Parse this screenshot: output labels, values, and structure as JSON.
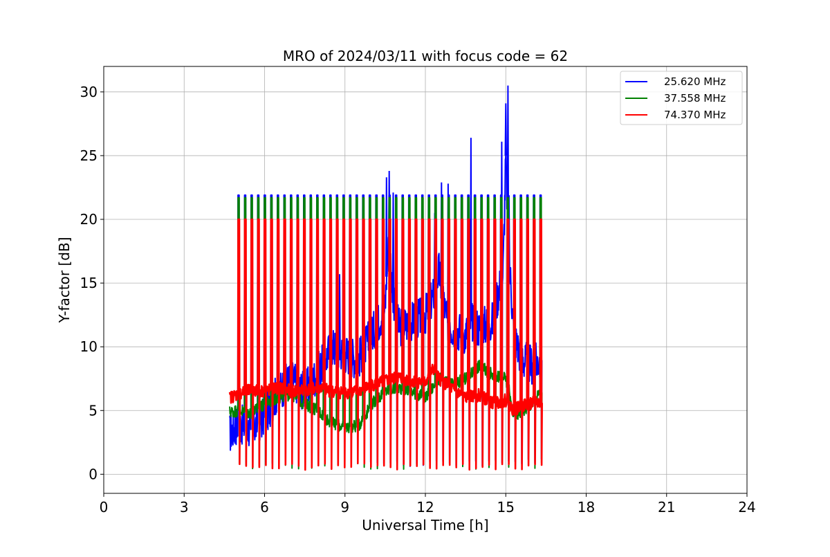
{
  "chart_data": {
    "type": "line",
    "title": "MRO of 2024/03/11 with focus code = 62",
    "xlabel": "Universal Time [h]",
    "ylabel": "Y-factor [dB]",
    "xlim": [
      0,
      24
    ],
    "ylim": [
      -1.5,
      32
    ],
    "xticks": [
      0,
      3,
      6,
      9,
      12,
      15,
      18,
      21,
      24
    ],
    "yticks": [
      0,
      5,
      10,
      15,
      20,
      25,
      30
    ],
    "grid": true,
    "legend_position": "top-right",
    "calibration_pulses": {
      "start_h": 5.0,
      "end_h": 16.3,
      "period_h": 0.245
    },
    "series": [
      {
        "name": "25.620 MHz",
        "color": "#0000ff",
        "pulse_peak": 21.9,
        "pulse_floor": 0.6,
        "baseline": {
          "x": [
            4.7,
            5.0,
            5.5,
            6.0,
            6.5,
            7.0,
            7.5,
            8.0,
            8.5,
            9.0,
            9.5,
            10.0,
            10.5,
            10.6,
            10.8,
            11.0,
            11.5,
            12.0,
            12.3,
            12.5,
            12.8,
            13.0,
            13.5,
            13.7,
            14.0,
            14.5,
            14.9,
            15.0,
            15.1,
            15.3,
            15.6,
            16.0,
            16.3
          ],
          "y": [
            3.2,
            4.0,
            3.5,
            4.5,
            6.5,
            7.5,
            6.5,
            8.0,
            10.0,
            9.5,
            9.0,
            11.0,
            13.0,
            18.0,
            14.0,
            11.5,
            12.0,
            12.5,
            14.0,
            16.0,
            12.0,
            11.5,
            11.0,
            12.0,
            11.5,
            12.0,
            16.0,
            25.0,
            18.0,
            11.0,
            9.0,
            8.5,
            9.0
          ]
        },
        "spikes": [
          {
            "x": 8.8,
            "y": 15.7
          },
          {
            "x": 10.55,
            "y": 23.3
          },
          {
            "x": 10.65,
            "y": 23.8
          },
          {
            "x": 10.8,
            "y": 22.1
          },
          {
            "x": 12.35,
            "y": 20.5
          },
          {
            "x": 12.6,
            "y": 22.9
          },
          {
            "x": 12.85,
            "y": 22.8
          },
          {
            "x": 13.7,
            "y": 26.4
          },
          {
            "x": 14.85,
            "y": 26.1
          },
          {
            "x": 15.0,
            "y": 29.1
          },
          {
            "x": 15.08,
            "y": 30.5
          }
        ]
      },
      {
        "name": "37.558 MHz",
        "color": "#008000",
        "pulse_peak": 21.7,
        "pulse_floor": 0.4,
        "baseline": {
          "x": [
            4.7,
            5.0,
            5.5,
            6.0,
            6.5,
            7.0,
            7.5,
            8.0,
            8.5,
            9.0,
            9.5,
            10.0,
            10.5,
            11.0,
            11.5,
            12.0,
            12.5,
            13.0,
            13.5,
            14.0,
            14.5,
            15.0,
            15.3,
            15.6,
            16.0,
            16.3
          ],
          "y": [
            4.9,
            5.0,
            4.8,
            5.5,
            6.0,
            6.3,
            5.5,
            5.0,
            4.0,
            3.7,
            3.8,
            5.5,
            6.5,
            6.8,
            6.5,
            6.0,
            7.5,
            7.0,
            7.5,
            8.5,
            7.8,
            7.5,
            4.5,
            5.0,
            5.5,
            6.5
          ]
        }
      },
      {
        "name": "74.370 MHz",
        "color": "#ff0000",
        "pulse_peak": 20.0,
        "pulse_floor": 0.3,
        "baseline": {
          "x": [
            4.7,
            5.0,
            5.5,
            6.0,
            6.5,
            7.0,
            7.5,
            8.0,
            8.5,
            9.0,
            9.5,
            10.0,
            10.5,
            11.0,
            11.5,
            12.0,
            12.3,
            12.5,
            13.0,
            13.5,
            14.0,
            14.5,
            15.0,
            15.3,
            15.6,
            16.0,
            16.3
          ],
          "y": [
            6.0,
            6.3,
            6.6,
            6.5,
            6.8,
            6.5,
            6.6,
            6.8,
            6.5,
            6.4,
            6.5,
            7.0,
            7.3,
            7.6,
            7.3,
            7.2,
            8.3,
            7.5,
            6.7,
            6.0,
            6.2,
            5.6,
            5.8,
            5.0,
            5.4,
            5.6,
            5.6
          ]
        }
      }
    ]
  }
}
